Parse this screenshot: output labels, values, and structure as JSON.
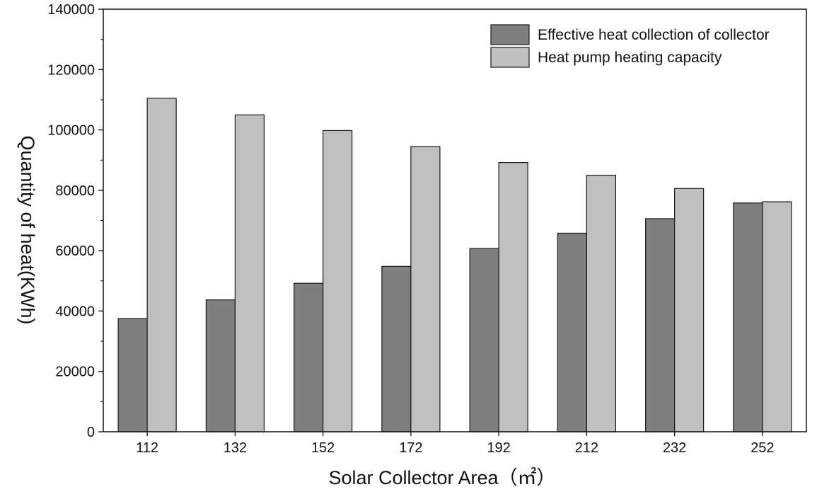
{
  "chart_data": {
    "type": "bar",
    "title": "",
    "xlabel": "Solar Collector Area（㎡）",
    "ylabel": "Quantity of heat(KWh)",
    "categories": [
      "112",
      "132",
      "152",
      "172",
      "192",
      "212",
      "232",
      "252"
    ],
    "series": [
      {
        "name": "Effective heat collection of collector",
        "color": "#7f7f7f",
        "values": [
          37500,
          43700,
          49200,
          54800,
          60700,
          65800,
          70600,
          75800
        ]
      },
      {
        "name": "Heat pump heating capacity",
        "color": "#c0c0c0",
        "values": [
          110500,
          105000,
          99800,
          94500,
          89200,
          85000,
          80600,
          76200
        ]
      }
    ],
    "ylim": [
      0,
      140000
    ],
    "yticks": [
      "0",
      "20000",
      "40000",
      "60000",
      "80000",
      "100000",
      "120000",
      "140000"
    ],
    "legend_position": "top-right",
    "grid": false
  }
}
